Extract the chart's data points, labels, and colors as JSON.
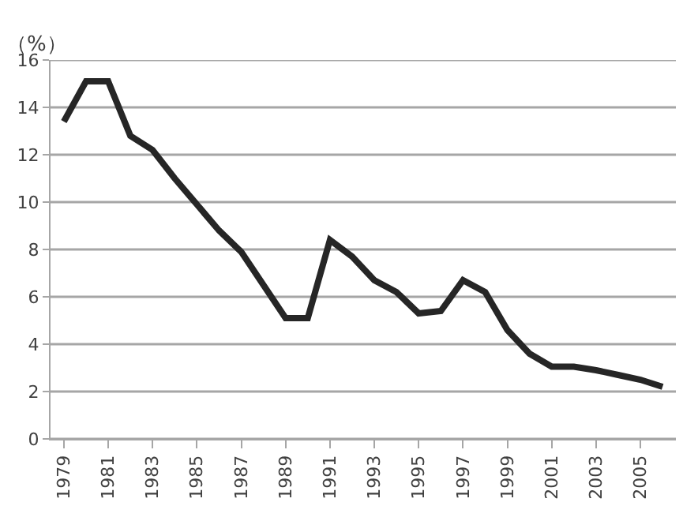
{
  "chart_data": {
    "type": "line",
    "ylabel": "（%）",
    "categories": [
      "1979",
      null,
      "1981",
      null,
      "1983",
      null,
      "1985",
      null,
      "1987",
      null,
      "1989",
      null,
      "1991",
      null,
      "1993",
      null,
      "1995",
      null,
      "1997",
      null,
      "1999",
      null,
      "2001",
      null,
      "2003",
      null,
      "2005",
      null
    ],
    "series": [
      {
        "color": "#262626",
        "values": [
          13.4,
          15.1,
          15.1,
          12.8,
          12.2,
          11.0,
          9.9,
          8.8,
          7.9,
          6.5,
          5.1,
          5.1,
          8.4,
          7.7,
          6.7,
          6.2,
          5.3,
          5.4,
          6.7,
          6.2,
          4.6,
          3.6,
          3.05,
          3.05,
          2.9,
          2.7,
          2.5,
          2.2
        ]
      }
    ],
    "ylim": [
      0,
      16
    ],
    "yticks": [
      0,
      2,
      4,
      6,
      8,
      10,
      12,
      14,
      16
    ],
    "grid": "y",
    "marker": "none",
    "line_style": "solid"
  }
}
